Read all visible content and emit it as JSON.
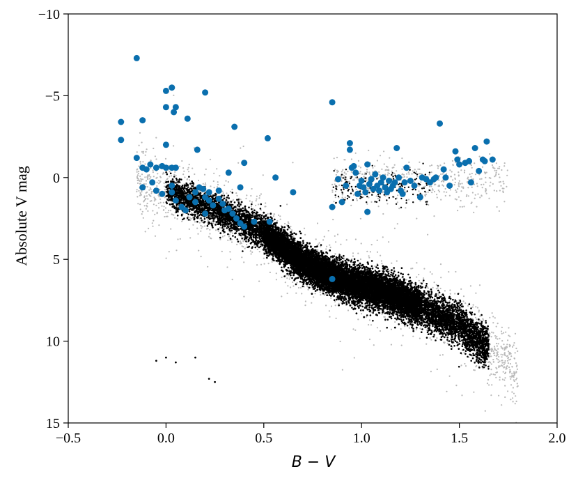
{
  "chart_data": {
    "type": "scatter",
    "xlabel": "B − V",
    "ylabel": "Absolute V mag",
    "xlim": [
      -0.5,
      2.0
    ],
    "ylim": [
      15,
      -10
    ],
    "y_inverted": true,
    "grid": false,
    "xticks": [
      -0.5,
      0.0,
      0.5,
      1.0,
      1.5,
      2.0
    ],
    "xtick_labels": [
      "−0.5",
      "0.0",
      "0.5",
      "1.0",
      "1.5",
      "2.0"
    ],
    "yticks": [
      -10,
      -5,
      0,
      5,
      10,
      15
    ],
    "ytick_labels": [
      "−10",
      "−5",
      "0",
      "5",
      "10",
      "15"
    ],
    "colors": {
      "highlight": "#0a6fae",
      "background_light": "#b8b8b8",
      "background_dark": "#000000"
    },
    "background_stars": {
      "description_only": false,
      "main_sequence_trend": [
        [
          0.0,
          0.8
        ],
        [
          0.3,
          2.2
        ],
        [
          0.5,
          3.4
        ],
        [
          0.7,
          5.2
        ],
        [
          0.9,
          6.3
        ],
        [
          1.1,
          6.9
        ],
        [
          1.3,
          7.9
        ],
        [
          1.5,
          9.0
        ],
        [
          1.6,
          10.0
        ]
      ],
      "red_giant_clump": [
        [
          0.9,
          0.3
        ],
        [
          1.0,
          0.6
        ],
        [
          1.1,
          0.8
        ],
        [
          1.2,
          0.5
        ],
        [
          1.3,
          0.2
        ],
        [
          1.5,
          0.0
        ],
        [
          1.7,
          0.0
        ]
      ],
      "white_dwarfs": [
        [
          -0.05,
          11.2
        ],
        [
          0.0,
          11.0
        ],
        [
          0.05,
          11.3
        ],
        [
          0.15,
          11.0
        ],
        [
          0.25,
          12.5
        ],
        [
          0.22,
          12.3
        ]
      ]
    },
    "highlighted_series": [
      [
        -0.15,
        -7.3
      ],
      [
        0.0,
        -5.3
      ],
      [
        0.03,
        -5.5
      ],
      [
        0.2,
        -5.2
      ],
      [
        0.0,
        -4.3
      ],
      [
        0.05,
        -4.3
      ],
      [
        0.04,
        -4.0
      ],
      [
        0.11,
        -3.6
      ],
      [
        -0.23,
        -3.4
      ],
      [
        -0.23,
        -2.3
      ],
      [
        -0.12,
        -3.5
      ],
      [
        0.35,
        -3.1
      ],
      [
        0.52,
        -2.4
      ],
      [
        0.85,
        -4.6
      ],
      [
        1.4,
        -3.3
      ],
      [
        -0.15,
        -1.2
      ],
      [
        0.16,
        -1.7
      ],
      [
        0.0,
        -2.0
      ],
      [
        -0.1,
        -0.5
      ],
      [
        -0.12,
        -0.6
      ],
      [
        -0.08,
        -0.8
      ],
      [
        -0.05,
        -0.6
      ],
      [
        -0.02,
        -0.7
      ],
      [
        0.0,
        -0.6
      ],
      [
        0.03,
        -0.6
      ],
      [
        0.05,
        -0.6
      ],
      [
        0.32,
        -0.3
      ],
      [
        0.4,
        -0.9
      ],
      [
        0.56,
        0.0
      ],
      [
        0.65,
        0.9
      ],
      [
        0.38,
        0.6
      ],
      [
        -0.12,
        0.6
      ],
      [
        -0.05,
        0.8
      ],
      [
        -0.07,
        0.3
      ],
      [
        -0.02,
        1.0
      ],
      [
        0.03,
        0.5
      ],
      [
        0.03,
        0.9
      ],
      [
        0.05,
        1.4
      ],
      [
        0.08,
        1.8
      ],
      [
        0.1,
        2.0
      ],
      [
        0.12,
        1.2
      ],
      [
        0.15,
        0.9
      ],
      [
        0.17,
        0.6
      ],
      [
        0.19,
        0.7
      ],
      [
        0.2,
        1.2
      ],
      [
        0.22,
        1.4
      ],
      [
        0.24,
        1.7
      ],
      [
        0.27,
        1.3
      ],
      [
        0.29,
        1.6
      ],
      [
        0.3,
        2.0
      ],
      [
        0.32,
        1.9
      ],
      [
        0.34,
        2.2
      ],
      [
        0.36,
        2.5
      ],
      [
        0.38,
        2.8
      ],
      [
        0.4,
        3.0
      ],
      [
        0.45,
        2.7
      ],
      [
        0.53,
        2.7
      ],
      [
        0.22,
        0.9
      ],
      [
        0.2,
        2.2
      ],
      [
        0.27,
        0.8
      ],
      [
        0.15,
        1.5
      ],
      [
        0.85,
        6.2
      ],
      [
        0.85,
        1.8
      ],
      [
        0.88,
        0.1
      ],
      [
        0.92,
        0.5
      ],
      [
        0.94,
        -1.7
      ],
      [
        0.94,
        -2.1
      ],
      [
        0.96,
        -0.7
      ],
      [
        0.97,
        -0.3
      ],
      [
        0.98,
        1.0
      ],
      [
        0.99,
        0.5
      ],
      [
        1.0,
        0.2
      ],
      [
        1.01,
        0.6
      ],
      [
        1.02,
        0.9
      ],
      [
        1.03,
        -0.8
      ],
      [
        1.04,
        0.4
      ],
      [
        1.05,
        0.1
      ],
      [
        1.06,
        0.7
      ],
      [
        1.07,
        -0.2
      ],
      [
        1.08,
        0.5
      ],
      [
        1.09,
        0.8
      ],
      [
        1.1,
        0.3
      ],
      [
        1.11,
        0.0
      ],
      [
        1.12,
        0.6
      ],
      [
        1.13,
        0.9
      ],
      [
        1.14,
        0.2
      ],
      [
        1.15,
        0.7
      ],
      [
        1.16,
        0.5
      ],
      [
        1.17,
        0.3
      ],
      [
        1.18,
        -1.8
      ],
      [
        1.19,
        0.0
      ],
      [
        1.2,
        0.8
      ],
      [
        1.21,
        1.0
      ],
      [
        1.22,
        0.3
      ],
      [
        1.23,
        -0.6
      ],
      [
        1.25,
        0.2
      ],
      [
        1.27,
        0.5
      ],
      [
        1.3,
        1.2
      ],
      [
        1.31,
        0.0
      ],
      [
        1.33,
        0.1
      ],
      [
        1.35,
        0.3
      ],
      [
        1.37,
        0.1
      ],
      [
        1.38,
        0.0
      ],
      [
        1.42,
        -0.5
      ],
      [
        1.43,
        0.0
      ],
      [
        1.45,
        0.5
      ],
      [
        1.48,
        -1.6
      ],
      [
        1.49,
        -1.1
      ],
      [
        1.5,
        -0.8
      ],
      [
        1.53,
        -0.9
      ],
      [
        1.55,
        -1.0
      ],
      [
        1.56,
        0.3
      ],
      [
        1.58,
        -1.8
      ],
      [
        1.6,
        -0.4
      ],
      [
        1.62,
        -1.1
      ],
      [
        1.63,
        -1.0
      ],
      [
        1.64,
        -2.2
      ],
      [
        1.67,
        -1.1
      ],
      [
        0.9,
        1.5
      ],
      [
        1.03,
        2.1
      ],
      [
        0.95,
        -0.6
      ]
    ]
  }
}
